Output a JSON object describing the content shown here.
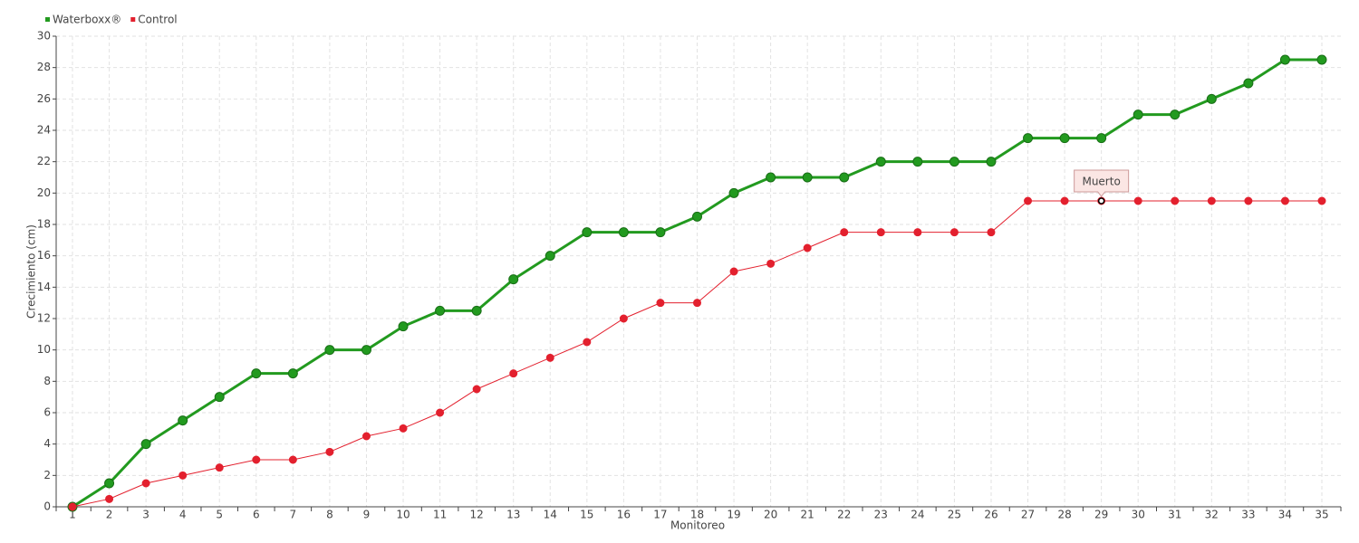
{
  "chart_data": {
    "type": "line",
    "x_label": "Monitoreo",
    "y_label": "Crecimiento (cm)",
    "categories": [
      "1",
      "2",
      "3",
      "4",
      "5",
      "6",
      "7",
      "8",
      "9",
      "10",
      "11",
      "12",
      "13",
      "14",
      "15",
      "16",
      "17",
      "18",
      "19",
      "20",
      "21",
      "22",
      "23",
      "24",
      "25",
      "26",
      "27",
      "28",
      "29",
      "30",
      "31",
      "32",
      "33",
      "34",
      "35"
    ],
    "series": [
      {
        "name": "Waterboxx®",
        "color": "#229a1f",
        "values": [
          0,
          1.5,
          4,
          5.5,
          7,
          8.5,
          8.5,
          10,
          10,
          11.5,
          12.5,
          12.5,
          14.5,
          16,
          17.5,
          17.5,
          17.5,
          18.5,
          20,
          21,
          21,
          21,
          22,
          22,
          22,
          22,
          23.5,
          23.5,
          23.5,
          25,
          25,
          26,
          27,
          28.5,
          28.5
        ]
      },
      {
        "name": "Control",
        "color": "#e3202e",
        "values": [
          0,
          0.5,
          1.5,
          2,
          2.5,
          3,
          3,
          3.5,
          4.5,
          5,
          6,
          7.5,
          8.5,
          9.5,
          10.5,
          12,
          13,
          13,
          15,
          15.5,
          16.5,
          17.5,
          17.5,
          17.5,
          17.5,
          17.5,
          19.5,
          19.5,
          19.5,
          19.5,
          19.5,
          19.5,
          19.5,
          19.5,
          19.5
        ]
      }
    ],
    "annotations": [
      {
        "text": "Muerto",
        "x": "29",
        "y": 19.5
      }
    ],
    "ylim": [
      0,
      30
    ],
    "yticks": [
      0,
      2,
      4,
      6,
      8,
      10,
      12,
      14,
      16,
      18,
      20,
      22,
      24,
      26,
      28,
      30
    ],
    "grid": true,
    "legend": "top-left"
  }
}
